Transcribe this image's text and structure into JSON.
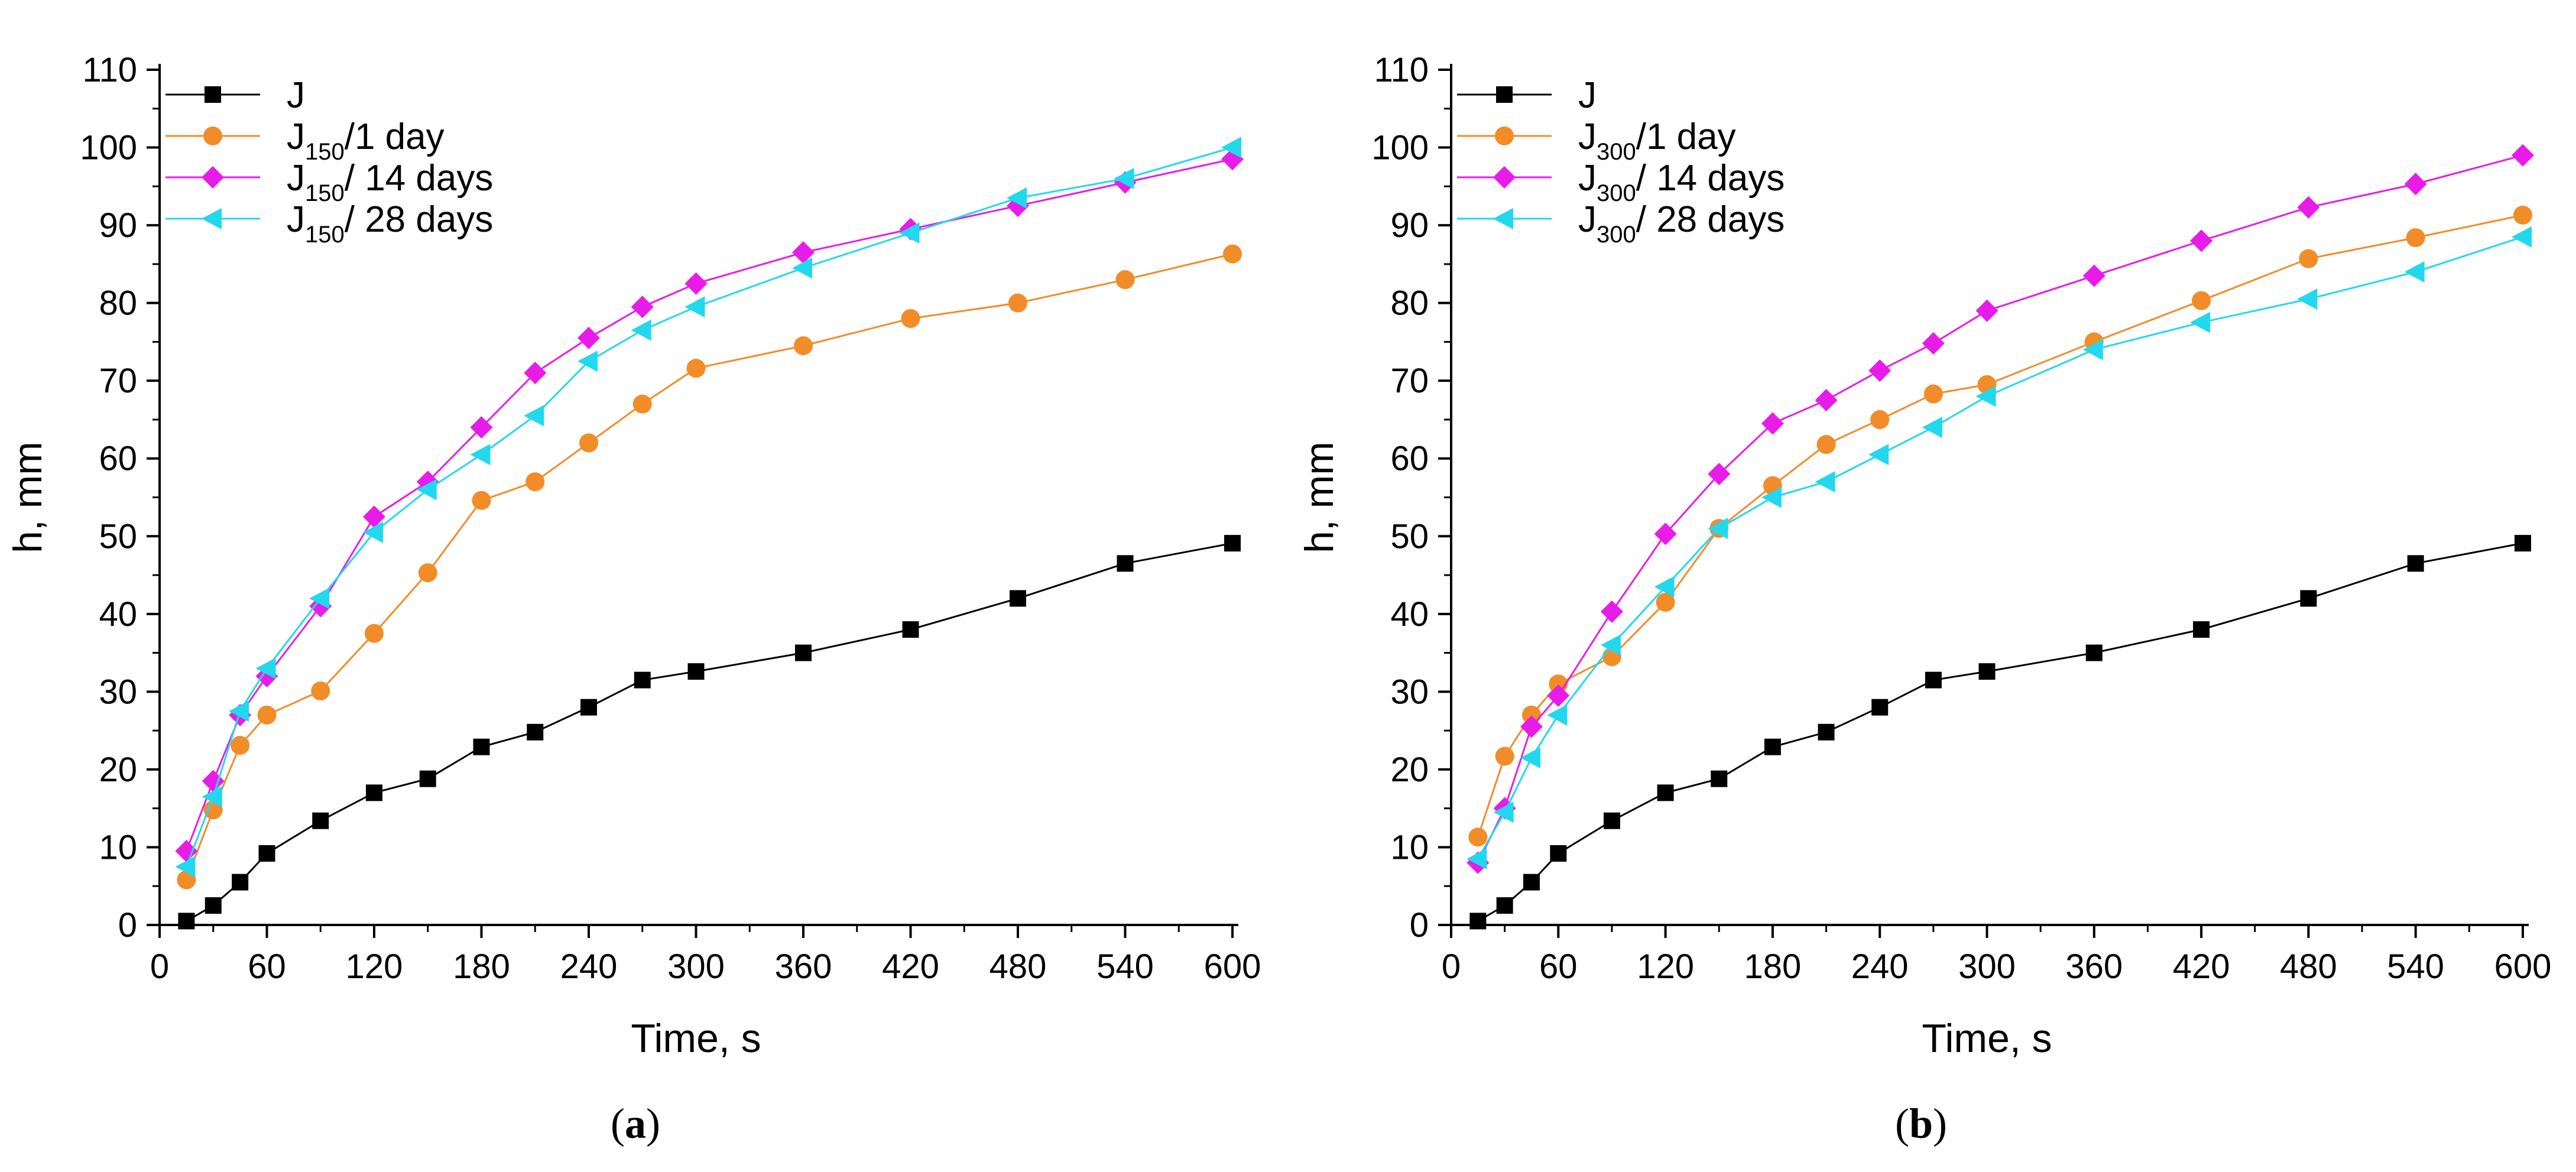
{
  "chart_data": [
    {
      "type": "line",
      "panel_label": {
        "open": "(",
        "letter": "a",
        "close": ")"
      },
      "xlabel": "Time, s",
      "ylabel": "h, mm",
      "xlim": [
        0,
        600
      ],
      "ylim": [
        0,
        110
      ],
      "xticks": [
        "0",
        "60",
        "120",
        "180",
        "240",
        "300",
        "360",
        "420",
        "480",
        "540",
        "600"
      ],
      "yticks": [
        "0",
        "10",
        "20",
        "30",
        "40",
        "50",
        "60",
        "70",
        "80",
        "90",
        "100",
        "110"
      ],
      "x": [
        15,
        30,
        45,
        60,
        90,
        120,
        150,
        180,
        210,
        240,
        270,
        300,
        360,
        420,
        480,
        540,
        600
      ],
      "legend_position": "top-left",
      "series": [
        {
          "name": "J",
          "legend": {
            "base": "J",
            "sub": "",
            "rest": ""
          },
          "color": "#000000",
          "marker": "square",
          "values": [
            0.5,
            2.5,
            5.5,
            9.2,
            13.4,
            17.0,
            18.8,
            22.9,
            24.8,
            28.0,
            31.5,
            32.6,
            35.0,
            38.0,
            42.0,
            46.5,
            49.1
          ]
        },
        {
          "name": "J150/1 day",
          "legend": {
            "base": "J",
            "sub": "150",
            "rest": "/1 day"
          },
          "color": "#F28C28",
          "marker": "circle",
          "values": [
            5.8,
            14.8,
            23.1,
            27.0,
            30.1,
            37.5,
            45.3,
            54.6,
            57.0,
            62.0,
            67.0,
            71.6,
            74.5,
            78.0,
            80.0,
            83.0,
            86.3
          ]
        },
        {
          "name": "J150/ 14 days",
          "legend": {
            "base": "J",
            "sub": "150",
            "rest": "/ 14 days"
          },
          "color": "#E81CE8",
          "marker": "diamond",
          "values": [
            9.5,
            18.5,
            27.0,
            32.0,
            41.0,
            52.5,
            57.0,
            64.0,
            71.0,
            75.5,
            79.5,
            82.5,
            86.5,
            89.5,
            92.5,
            95.5,
            98.5
          ]
        },
        {
          "name": "J150/ 28 days",
          "legend": {
            "base": "J",
            "sub": "150",
            "rest": "/ 28 days"
          },
          "color": "#22D8EE",
          "marker": "triangle-left",
          "values": [
            7.5,
            16.5,
            27.5,
            33.0,
            42.0,
            50.5,
            56.0,
            60.5,
            65.5,
            72.5,
            76.5,
            79.5,
            84.5,
            89.0,
            93.5,
            96.0,
            100.0
          ]
        }
      ]
    },
    {
      "type": "line",
      "panel_label": {
        "open": "(",
        "letter": "b",
        "close": ")"
      },
      "xlabel": "Time, s",
      "ylabel": "h, mm",
      "xlim": [
        0,
        600
      ],
      "ylim": [
        0,
        110
      ],
      "xticks": [
        "0",
        "60",
        "120",
        "180",
        "240",
        "300",
        "360",
        "420",
        "480",
        "540",
        "600"
      ],
      "yticks": [
        "0",
        "10",
        "20",
        "30",
        "40",
        "50",
        "60",
        "70",
        "80",
        "90",
        "100",
        "110"
      ],
      "x": [
        15,
        30,
        45,
        60,
        90,
        120,
        150,
        180,
        210,
        240,
        270,
        300,
        360,
        420,
        480,
        540,
        600
      ],
      "legend_position": "top-left",
      "series": [
        {
          "name": "J",
          "legend": {
            "base": "J",
            "sub": "",
            "rest": ""
          },
          "color": "#000000",
          "marker": "square",
          "values": [
            0.5,
            2.5,
            5.5,
            9.2,
            13.4,
            17.0,
            18.8,
            22.9,
            24.8,
            28.0,
            31.5,
            32.6,
            35.0,
            38.0,
            42.0,
            46.5,
            49.1
          ]
        },
        {
          "name": "J300/1 day",
          "legend": {
            "base": "J",
            "sub": "300",
            "rest": "/1 day"
          },
          "color": "#F28C28",
          "marker": "circle",
          "values": [
            11.3,
            21.7,
            27.0,
            31.0,
            34.5,
            41.5,
            51.0,
            56.5,
            61.8,
            65.0,
            68.3,
            69.5,
            75.0,
            80.3,
            85.7,
            88.4,
            91.3
          ]
        },
        {
          "name": "J300/ 14 days",
          "legend": {
            "base": "J",
            "sub": "300",
            "rest": "/ 14 days"
          },
          "color": "#E81CE8",
          "marker": "diamond",
          "values": [
            8.0,
            15.0,
            25.5,
            29.5,
            40.3,
            50.3,
            58.0,
            64.5,
            67.5,
            71.3,
            74.8,
            79.0,
            83.5,
            88.0,
            92.3,
            95.3,
            99.0
          ]
        },
        {
          "name": "J300/ 28 days",
          "legend": {
            "base": "J",
            "sub": "300",
            "rest": "/ 28 days"
          },
          "color": "#22D8EE",
          "marker": "triangle-left",
          "values": [
            8.5,
            14.5,
            21.5,
            27.0,
            36.0,
            43.5,
            51.0,
            55.0,
            57.0,
            60.5,
            64.0,
            68.0,
            74.0,
            77.5,
            80.5,
            84.0,
            88.5
          ]
        }
      ]
    }
  ]
}
